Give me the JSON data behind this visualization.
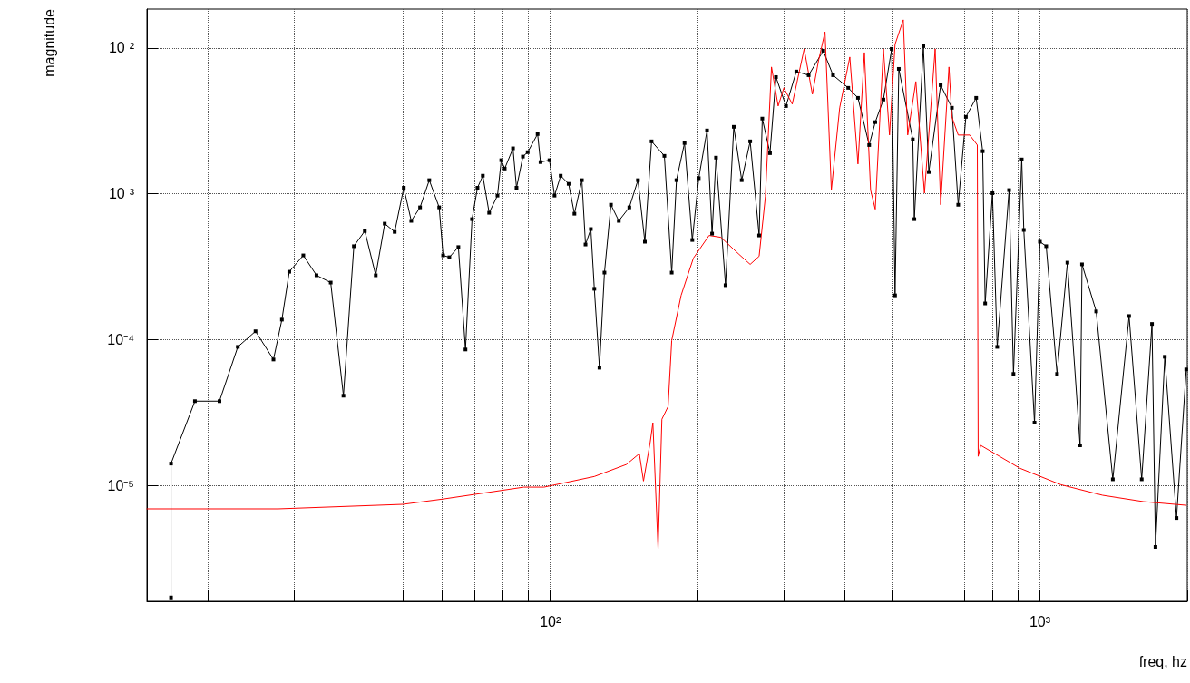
{
  "chart_data": {
    "type": "line",
    "xlabel": "freq, hz",
    "ylabel": "magnitude",
    "log": "xy",
    "grid": true,
    "line_style": "solid",
    "xlim": [
      15,
      2000
    ],
    "ylim": [
      1.6e-06,
      0.0185
    ],
    "xticks": [
      {
        "value": 20,
        "label": null
      },
      {
        "value": 30,
        "label": null
      },
      {
        "value": 40,
        "label": null
      },
      {
        "value": 50,
        "label": null
      },
      {
        "value": 60,
        "label": null
      },
      {
        "value": 70,
        "label": null
      },
      {
        "value": 80,
        "label": null
      },
      {
        "value": 90,
        "label": null
      },
      {
        "value": 100,
        "label": "10²"
      },
      {
        "value": 200,
        "label": null
      },
      {
        "value": 300,
        "label": null
      },
      {
        "value": 400,
        "label": null
      },
      {
        "value": 500,
        "label": null
      },
      {
        "value": 600,
        "label": null
      },
      {
        "value": 700,
        "label": null
      },
      {
        "value": 800,
        "label": null
      },
      {
        "value": 900,
        "label": null
      },
      {
        "value": 1000,
        "label": "10³"
      },
      {
        "value": 2000,
        "label": null
      }
    ],
    "yticks": [
      {
        "value": 1e-05,
        "label": "10⁻⁵"
      },
      {
        "value": 0.0001,
        "label": "10⁻⁴"
      },
      {
        "value": 0.001,
        "label": "10⁻³"
      },
      {
        "value": 0.01,
        "label": "10⁻²"
      }
    ],
    "series": [
      {
        "color": "#000000",
        "marker": "square",
        "x": [
          16.8,
          16.8,
          18.8,
          21.1,
          23.0,
          25.0,
          27.2,
          28.3,
          29.3,
          31.3,
          33.3,
          35.6,
          37.8,
          39.7,
          41.8,
          44.0,
          45.9,
          48.1,
          50.2,
          52.0,
          54.2,
          56.6,
          59.3,
          60.4,
          62.2,
          64.9,
          67.1,
          69.2,
          71.0,
          72.8,
          75.0,
          78.0,
          79.4,
          80.7,
          83.9,
          85.3,
          87.9,
          89.9,
          94.2,
          95.5,
          99.6,
          102,
          105,
          109,
          112,
          116,
          118,
          121,
          123,
          126,
          129,
          133,
          138,
          145,
          151,
          156,
          161,
          171,
          177,
          181,
          188,
          195,
          201,
          209,
          214,
          218,
          228,
          237,
          246,
          256,
          267,
          271,
          281,
          289,
          303,
          318,
          337,
          361,
          378,
          406,
          425,
          448,
          461,
          479,
          498,
          506,
          515,
          550,
          554,
          578,
          593,
          627,
          661,
          681,
          706,
          741,
          764,
          773,
          800,
          818,
          865,
          883,
          918,
          927,
          975,
          1000,
          1030,
          1084,
          1138,
          1208,
          1219,
          1303,
          1409,
          1521,
          1614,
          1694,
          1722,
          1799,
          1901,
          1990
        ],
        "values": [
          1.7e-06,
          1.41e-05,
          3.78e-05,
          3.78e-05,
          8.91e-05,
          0.000114,
          7.3e-05,
          0.000137,
          0.000292,
          0.000378,
          0.000276,
          0.000246,
          4.12e-05,
          0.000437,
          0.000556,
          0.000276,
          0.000624,
          0.000548,
          0.0011,
          0.000652,
          0.000807,
          0.00124,
          0.000807,
          0.000378,
          0.000367,
          0.000431,
          8.55e-05,
          0.00067,
          0.0011,
          0.00133,
          0.000741,
          0.000972,
          0.0017,
          0.00149,
          0.00205,
          0.0011,
          0.0018,
          0.00193,
          0.00257,
          0.00165,
          0.0017,
          0.000972,
          0.00133,
          0.00117,
          0.00073,
          0.00124,
          0.000449,
          0.000573,
          0.000223,
          6.41e-05,
          0.000288,
          0.000841,
          0.000652,
          0.000807,
          0.00124,
          0.000469,
          0.00229,
          0.00182,
          0.000288,
          0.00124,
          0.00223,
          0.000482,
          0.00128,
          0.00272,
          0.000533,
          0.00177,
          0.000236,
          0.00288,
          0.00124,
          0.00229,
          0.000518,
          0.00328,
          0.0019,
          0.00632,
          0.004,
          0.0069,
          0.00651,
          0.00958,
          0.00651,
          0.00533,
          0.00455,
          0.00216,
          0.0031,
          0.00443,
          0.00986,
          0.000201,
          0.00719,
          0.00236,
          0.00067,
          0.0103,
          0.00141,
          0.00556,
          0.00389,
          0.000841,
          0.00337,
          0.00455,
          0.00196,
          0.000177,
          0.00101,
          8.91e-05,
          0.00106,
          5.81e-05,
          0.00172,
          0.000565,
          2.69e-05,
          0.000469,
          0.000437,
          5.81e-05,
          0.000337,
          1.88e-05,
          0.000328,
          0.000156,
          1.1e-05,
          0.000145,
          1.1e-05,
          0.000128,
          3.78e-06,
          7.62e-05,
          5.97e-06,
          6.24e-05
        ]
      },
      {
        "color": "#ff0000",
        "marker": "none",
        "x": [
          15,
          27.8,
          50.0,
          60.6,
          88.3,
          97.1,
          123,
          143,
          152,
          155,
          160,
          162,
          166,
          169,
          174,
          177,
          185,
          196,
          211,
          223,
          243,
          256,
          267,
          275,
          283,
          292,
          300,
          312,
          330,
          343,
          353,
          364,
          375,
          390,
          409,
          425,
          438,
          451,
          461,
          479,
          493,
          506,
          526,
          537,
          558,
          581,
          611,
          627,
          652,
          661,
          681,
          719,
          745,
          748,
          757,
          910,
          1104,
          1343,
          1629,
          1990
        ],
        "values": [
          6.9e-06,
          6.9e-06,
          7.41e-06,
          8.07e-06,
          9.72e-06,
          9.72e-06,
          1.15e-05,
          1.39e-05,
          1.65e-05,
          1.07e-05,
          1.99e-05,
          2.69e-05,
          3.67e-06,
          2.84e-05,
          3.47e-05,
          9.86e-05,
          0.000201,
          0.000362,
          0.000518,
          0.000503,
          0.000384,
          0.000328,
          0.000373,
          0.000957,
          0.00741,
          0.004,
          0.00533,
          0.00412,
          0.00986,
          0.00482,
          0.00818,
          0.0129,
          0.00106,
          0.00389,
          0.00867,
          0.0016,
          0.00931,
          0.00106,
          0.000784,
          0.00986,
          0.00253,
          0.0106,
          0.0156,
          0.00253,
          0.00589,
          0.00101,
          0.00986,
          0.000841,
          0.00741,
          0.00337,
          0.00253,
          0.00253,
          0.00216,
          1.58e-05,
          1.88e-05,
          1.31e-05,
          1.01e-05,
          8.55e-06,
          7.73e-06,
          7.3e-06
        ]
      }
    ]
  }
}
